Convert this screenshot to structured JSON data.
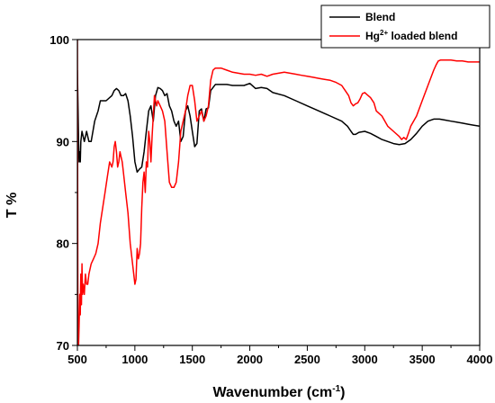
{
  "chart_data": {
    "type": "line",
    "xlabel": "Wavenumber (cm",
    "xlabel_sup": "-1",
    "xlabel_tail": ")",
    "ylabel": "T %",
    "xlim": [
      500,
      4000
    ],
    "ylim": [
      70,
      100
    ],
    "x_ticks": [
      500,
      1000,
      1500,
      2000,
      2500,
      3000,
      3500,
      4000
    ],
    "y_ticks": [
      70,
      80,
      90,
      100
    ],
    "grid": false,
    "legend_position": "top-right",
    "series": [
      {
        "name": "Blend",
        "legend_parts": [
          "Blend",
          "",
          ""
        ],
        "color": "#000000",
        "x": [
          500,
          510,
          515,
          520,
          525,
          530,
          540,
          560,
          580,
          600,
          620,
          650,
          680,
          700,
          750,
          800,
          820,
          840,
          860,
          880,
          900,
          920,
          940,
          960,
          980,
          1000,
          1020,
          1040,
          1060,
          1080,
          1100,
          1120,
          1140,
          1160,
          1180,
          1200,
          1220,
          1240,
          1260,
          1280,
          1300,
          1320,
          1340,
          1360,
          1380,
          1400,
          1420,
          1440,
          1460,
          1480,
          1500,
          1520,
          1540,
          1560,
          1580,
          1600,
          1620,
          1640,
          1660,
          1700,
          1750,
          1800,
          1850,
          1900,
          1950,
          2000,
          2050,
          2100,
          2150,
          2200,
          2300,
          2400,
          2500,
          2600,
          2700,
          2800,
          2850,
          2880,
          2900,
          2920,
          2950,
          3000,
          3050,
          3100,
          3150,
          3200,
          3250,
          3300,
          3350,
          3400,
          3450,
          3500,
          3550,
          3600,
          3650,
          3700,
          3750,
          3800,
          3850,
          3900,
          3950,
          4000
        ],
        "values": [
          97,
          90,
          88,
          89,
          88,
          90,
          91,
          90,
          91,
          90,
          90,
          92,
          93,
          94,
          94,
          94.5,
          95,
          95.2,
          95,
          94.5,
          94.5,
          94.7,
          94,
          92.5,
          90.5,
          88,
          87,
          87.3,
          87.5,
          89,
          91,
          93,
          93.5,
          92,
          94.5,
          95.3,
          95.2,
          95,
          94.5,
          94.7,
          93.5,
          93,
          92,
          91.5,
          92,
          90,
          90.5,
          93,
          93.5,
          92.5,
          91,
          89.5,
          89.8,
          93,
          93.2,
          92,
          93.2,
          93.3,
          95,
          95.6,
          95.6,
          95.6,
          95.5,
          95.5,
          95.5,
          95.7,
          95.2,
          95.3,
          95.2,
          94.8,
          94.5,
          94,
          93.5,
          93,
          92.5,
          92,
          91.5,
          91,
          90.7,
          90.7,
          90.9,
          91,
          90.8,
          90.5,
          90.2,
          90,
          89.8,
          89.7,
          89.8,
          90.2,
          90.8,
          91.5,
          92,
          92.2,
          92.2,
          92.1,
          92,
          91.9,
          91.8,
          91.7,
          91.6,
          91.5
        ]
      },
      {
        "name": "Hg2+ loaded blend",
        "legend_parts": [
          "Hg",
          "2+",
          " loaded blend"
        ],
        "color": "#ff0000",
        "x": [
          500,
          505,
          510,
          515,
          520,
          525,
          530,
          535,
          540,
          545,
          550,
          560,
          570,
          580,
          590,
          600,
          620,
          640,
          660,
          680,
          700,
          720,
          740,
          760,
          780,
          800,
          810,
          820,
          830,
          840,
          850,
          860,
          870,
          880,
          890,
          900,
          920,
          940,
          960,
          980,
          1000,
          1010,
          1020,
          1030,
          1040,
          1050,
          1060,
          1070,
          1080,
          1090,
          1100,
          1110,
          1120,
          1130,
          1140,
          1150,
          1160,
          1170,
          1180,
          1190,
          1200,
          1220,
          1240,
          1260,
          1280,
          1300,
          1320,
          1340,
          1360,
          1380,
          1400,
          1420,
          1440,
          1460,
          1480,
          1500,
          1520,
          1540,
          1560,
          1580,
          1600,
          1620,
          1640,
          1660,
          1680,
          1700,
          1750,
          1800,
          1850,
          1900,
          1950,
          2000,
          2050,
          2100,
          2150,
          2200,
          2250,
          2300,
          2350,
          2400,
          2450,
          2500,
          2550,
          2600,
          2650,
          2700,
          2750,
          2800,
          2830,
          2860,
          2880,
          2900,
          2920,
          2940,
          2960,
          2980,
          3000,
          3020,
          3050,
          3080,
          3100,
          3150,
          3200,
          3250,
          3300,
          3320,
          3340,
          3360,
          3380,
          3400,
          3450,
          3500,
          3550,
          3600,
          3620,
          3640,
          3660,
          3680,
          3700,
          3750,
          3800,
          3850,
          3900,
          3950,
          4000
        ],
        "values": [
          100,
          70,
          70,
          72,
          75,
          73,
          77,
          74,
          78,
          75,
          76,
          75,
          77,
          76,
          76,
          77,
          78,
          78.5,
          79,
          80,
          82,
          83.5,
          85,
          86.5,
          88,
          87.5,
          88,
          89.5,
          90,
          89,
          87.5,
          88,
          89,
          88.5,
          88,
          87,
          85,
          83,
          80,
          78,
          76,
          76.5,
          79.5,
          78.5,
          79,
          80,
          83.5,
          86,
          87,
          85,
          88,
          87.5,
          91,
          90,
          88,
          90.5,
          92.5,
          94.5,
          94,
          93.5,
          94,
          93.5,
          93,
          92,
          89,
          86,
          85.5,
          85.5,
          86,
          88,
          91,
          92,
          93,
          94.5,
          95.5,
          95.5,
          94,
          92,
          92.5,
          93,
          92,
          92.5,
          93.5,
          96,
          97,
          97.2,
          97.2,
          97,
          96.8,
          96.7,
          96.6,
          96.6,
          96.5,
          96.6,
          96.4,
          96.6,
          96.7,
          96.8,
          96.7,
          96.6,
          96.5,
          96.4,
          96.3,
          96.2,
          96.1,
          96,
          95.8,
          95.5,
          95,
          94.5,
          93.8,
          93.5,
          93.7,
          93.8,
          94.2,
          94.7,
          94.8,
          94.6,
          94.3,
          93.8,
          93,
          92.5,
          91.5,
          91,
          90.5,
          90.2,
          90.4,
          90.2,
          90.8,
          91.5,
          92.5,
          94,
          95.5,
          97,
          97.5,
          97.9,
          98,
          98,
          98,
          98,
          97.9,
          97.9,
          97.8,
          97.8,
          97.8
        ]
      }
    ]
  }
}
